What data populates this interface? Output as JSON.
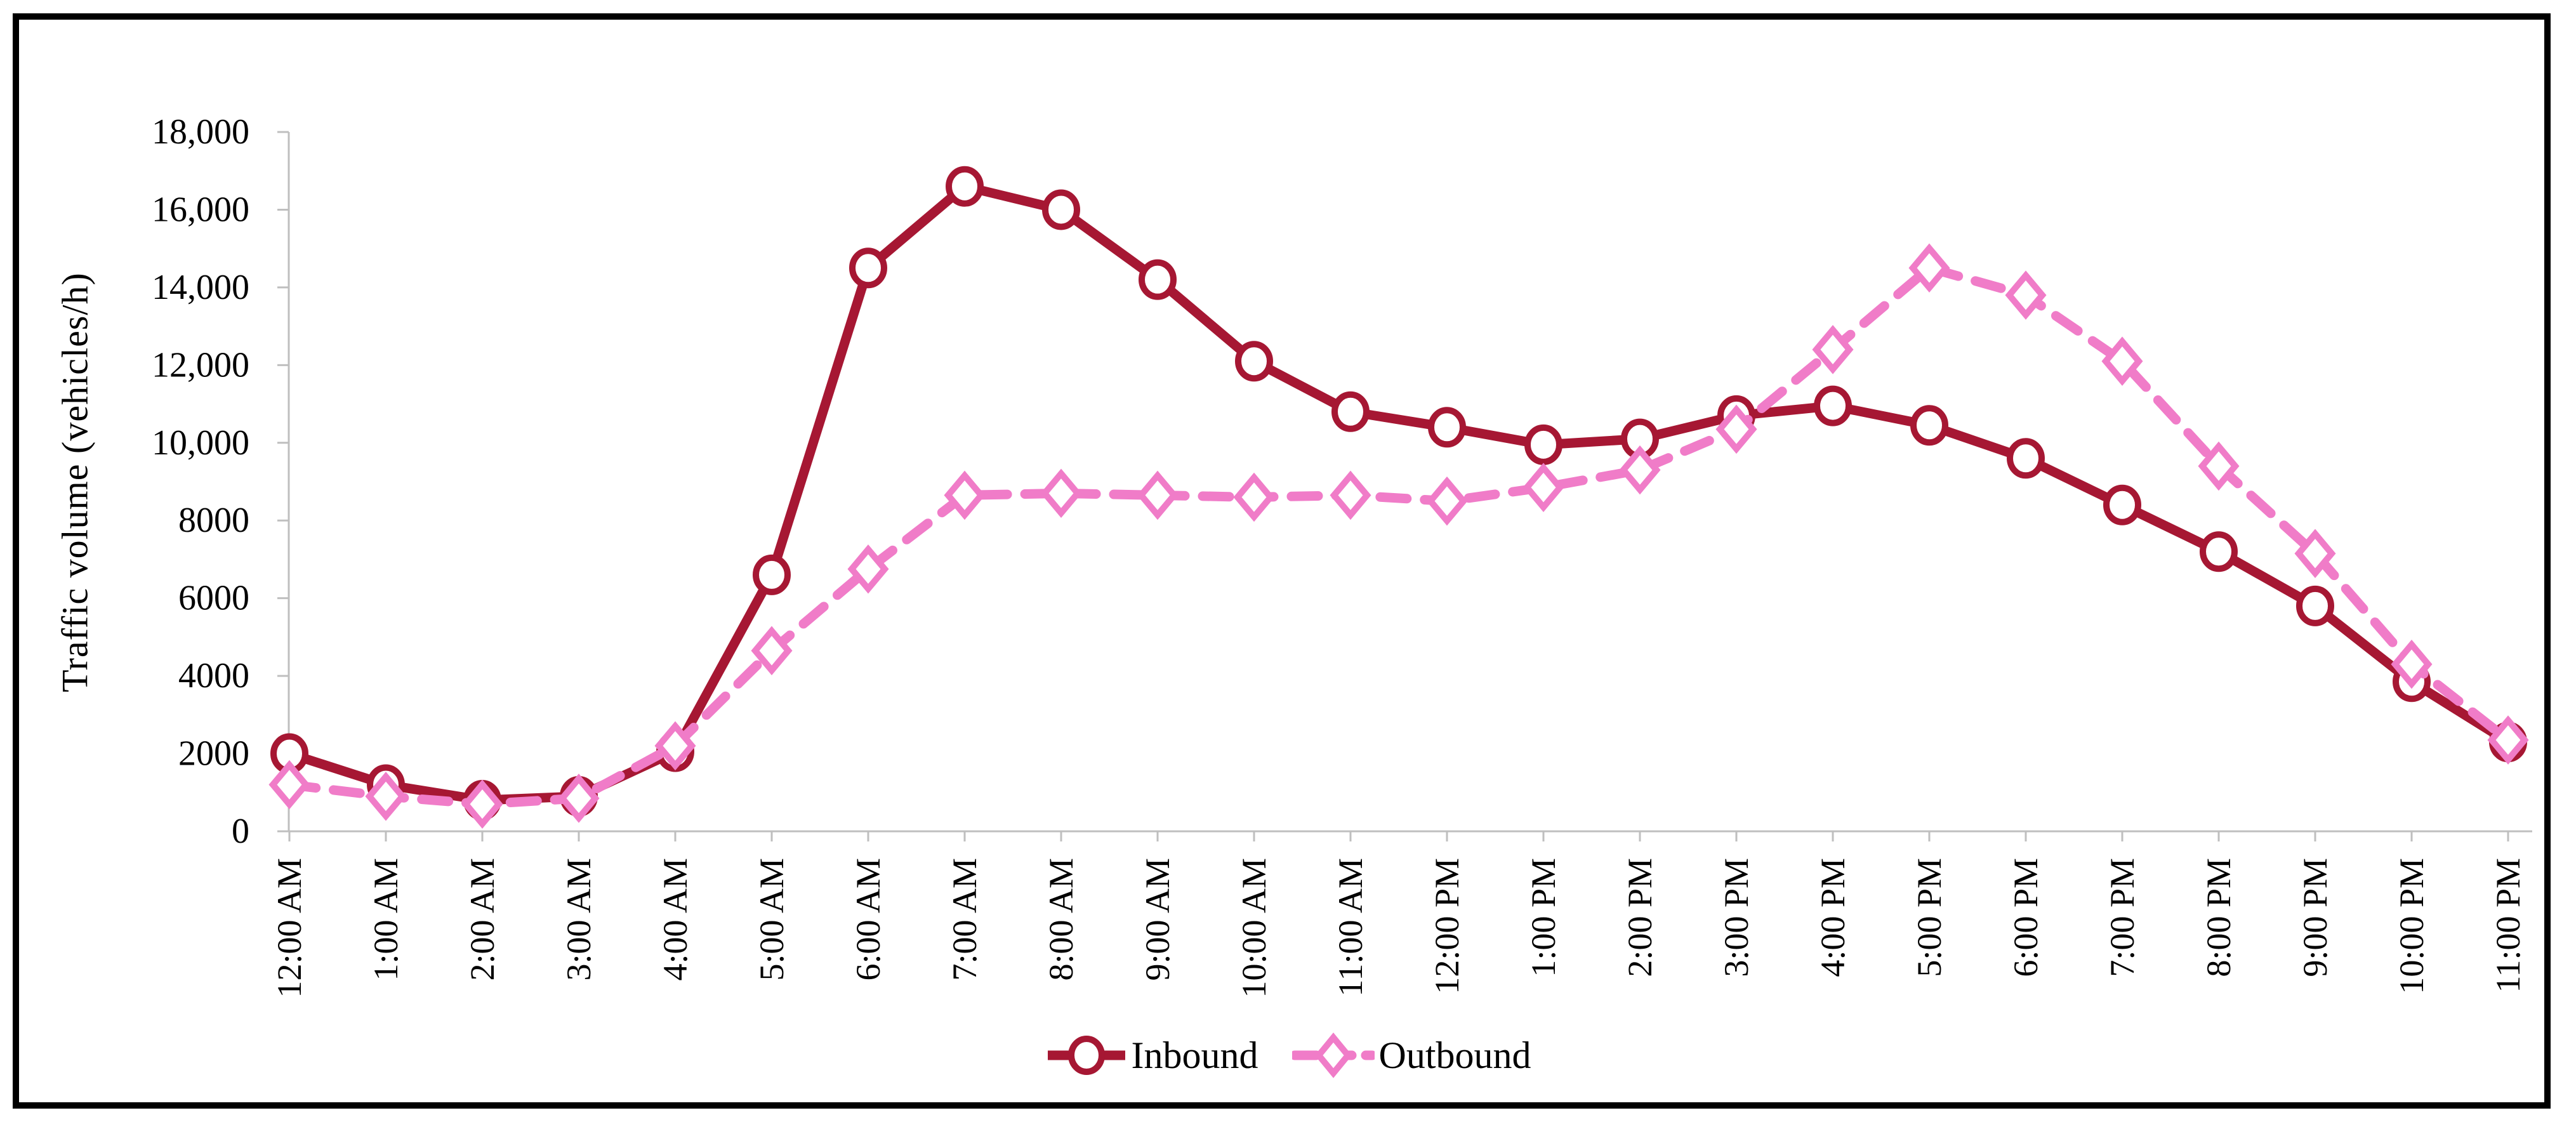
{
  "chart_data": {
    "type": "line",
    "title": "",
    "xlabel": "",
    "ylabel": "Traffic volume (vehicles/h)",
    "ylim": [
      0,
      18000
    ],
    "ytick_step": 2000,
    "ytick_labels": [
      "0",
      "2000",
      "4000",
      "6000",
      "8000",
      "10,000",
      "12,000",
      "14,000",
      "16,000",
      "18,000"
    ],
    "grid": false,
    "legend_position": "bottom-center",
    "axis_color": "#BFBFBF",
    "text_color": "#000000",
    "background_color": "#FFFFFF",
    "categories": [
      "12:00 AM",
      "1:00 AM",
      "2:00 AM",
      "3:00 AM",
      "4:00 AM",
      "5:00 AM",
      "6:00 AM",
      "7:00 AM",
      "8:00 AM",
      "9:00 AM",
      "10:00 AM",
      "11:00 AM",
      "12:00 PM",
      "1:00 PM",
      "2:00 PM",
      "3:00 PM",
      "4:00 PM",
      "5:00 PM",
      "6:00 PM",
      "7:00 PM",
      "8:00 PM",
      "9:00 PM",
      "10:00 PM",
      "11:00 PM"
    ],
    "series": [
      {
        "name": "Inbound",
        "color": "#A61733",
        "marker": "circle",
        "line_style": "solid",
        "values": [
          2000,
          1200,
          800,
          900,
          2050,
          6600,
          14500,
          16600,
          16000,
          14200,
          12100,
          10800,
          10400,
          9950,
          10100,
          10700,
          10950,
          10450,
          9600,
          8400,
          7200,
          5800,
          3850,
          2300
        ]
      },
      {
        "name": "Outbound",
        "color": "#F07CC8",
        "marker": "diamond",
        "line_style": "dashed",
        "values": [
          1200,
          900,
          700,
          850,
          2200,
          4650,
          6750,
          8650,
          8700,
          8650,
          8600,
          8650,
          8500,
          8850,
          9300,
          10350,
          12400,
          14500,
          13800,
          12100,
          9400,
          7150,
          4300,
          2350
        ]
      }
    ]
  }
}
